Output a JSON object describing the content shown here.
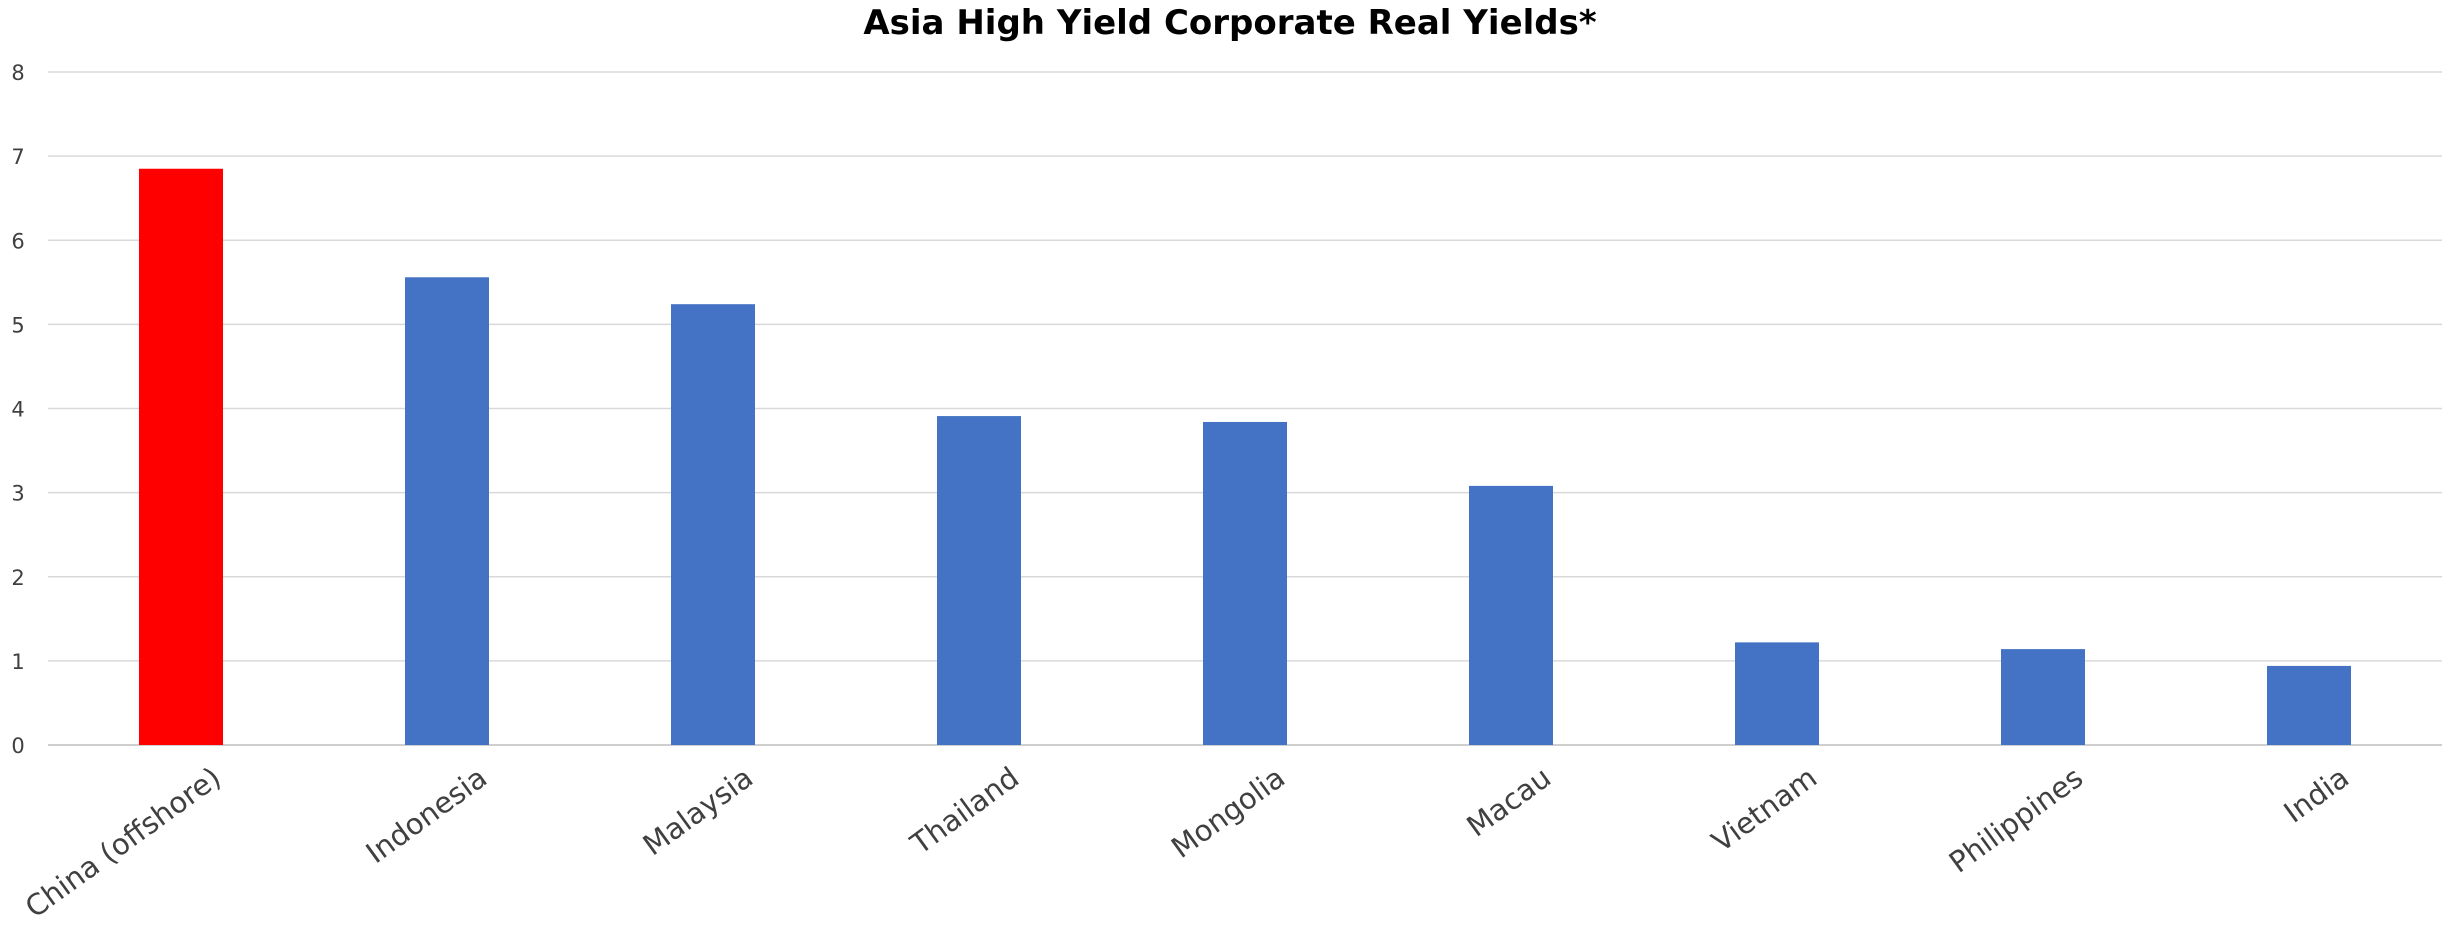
{
  "chart_data": {
    "type": "bar",
    "title": "Asia High Yield Corporate Real Yields*",
    "xlabel": "",
    "ylabel": "",
    "ylim": [
      0,
      8
    ],
    "yticks": [
      0,
      1,
      2,
      3,
      4,
      5,
      6,
      7,
      8
    ],
    "grid": true,
    "legend": "none",
    "categories": [
      "China (offshore)",
      "Indonesia",
      "Malaysia",
      "Thailand",
      "Mongolia",
      "Macau",
      "Vietnam",
      "Philippines",
      "India"
    ],
    "values": [
      6.85,
      5.56,
      5.24,
      3.91,
      3.84,
      3.08,
      1.22,
      1.14,
      0.94
    ],
    "colors": [
      "#ff0000",
      "#4472c4",
      "#4472c4",
      "#4472c4",
      "#4472c4",
      "#4472c4",
      "#4472c4",
      "#4472c4",
      "#4472c4"
    ]
  }
}
